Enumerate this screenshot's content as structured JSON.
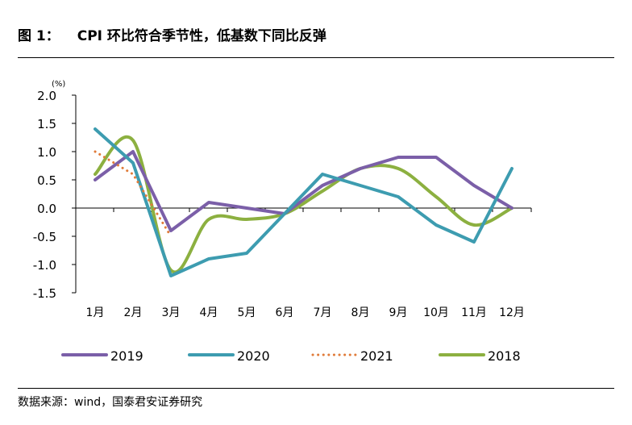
{
  "figure": {
    "label": "图 1：",
    "title": "CPI 环比符合季节性，低基数下同比反弹",
    "source": "数据来源：wind，国泰君安证券研究"
  },
  "chart_data": {
    "type": "line",
    "ylabel": "(%)",
    "ylim": [
      -1.5,
      2.0
    ],
    "yticks": [
      "2.0",
      "1.5",
      "1.0",
      "0.5",
      "0.0",
      "-0.5",
      "-1.0",
      "-1.5"
    ],
    "categories": [
      "1月",
      "2月",
      "3月",
      "4月",
      "5月",
      "6月",
      "7月",
      "8月",
      "9月",
      "10月",
      "11月",
      "12月"
    ],
    "grid": false,
    "legend_position": "bottom",
    "series": [
      {
        "name": "2019",
        "color": "#7b5fa8",
        "style": "solid",
        "values": [
          0.5,
          1.0,
          -0.4,
          0.1,
          0.0,
          -0.1,
          0.4,
          0.7,
          0.9,
          0.9,
          0.4,
          0.0
        ]
      },
      {
        "name": "2020",
        "color": "#3d9cb0",
        "style": "solid",
        "values": [
          1.4,
          0.8,
          -1.2,
          -0.9,
          -0.8,
          -0.1,
          0.6,
          0.4,
          0.2,
          -0.3,
          -0.6,
          0.7
        ]
      },
      {
        "name": "2021",
        "color": "#e07b39",
        "style": "dotted",
        "values": [
          1.0,
          0.6,
          -0.5,
          null,
          null,
          null,
          null,
          null,
          null,
          null,
          null,
          null
        ]
      },
      {
        "name": "2018",
        "color": "#8cb040",
        "style": "solid",
        "smooth": true,
        "values": [
          0.6,
          1.2,
          -1.1,
          -0.2,
          -0.2,
          -0.1,
          0.3,
          0.7,
          0.7,
          0.2,
          -0.3,
          0.0
        ]
      }
    ]
  }
}
